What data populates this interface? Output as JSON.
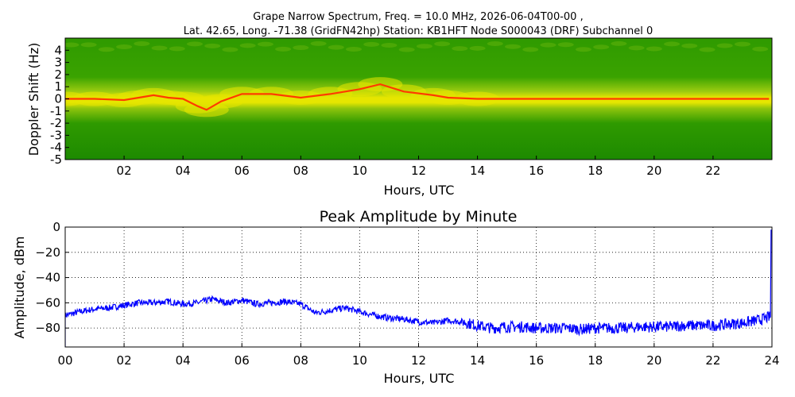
{
  "chart_data": [
    {
      "type": "heatmap",
      "title_line1": "Grape Narrow Spectrum, Freq. = 10.0 MHz, 2026-06-04T00-00 ,",
      "title_line2": "Lat.  42.65, Long. -71.38 (GridFN42hp) Station: KB1HFT Node S000043 (DRF) Subchannel 0",
      "xlabel": "Hours, UTC",
      "ylabel": "Doppler Shift (Hz)",
      "xlim": [
        0,
        24
      ],
      "ylim": [
        -5,
        5
      ],
      "x_ticks": [
        "02",
        "04",
        "06",
        "08",
        "10",
        "12",
        "14",
        "16",
        "18",
        "20",
        "22"
      ],
      "y_ticks": [
        "4",
        "3",
        "2",
        "1",
        "0",
        "-1",
        "-2",
        "-3",
        "-4",
        "-5"
      ],
      "colors": {
        "background": "#1a8a00",
        "mid": "#e6e600",
        "peak": "#ff3b00"
      },
      "doppler_trace": {
        "hours": [
          0,
          1,
          2,
          2.5,
          3,
          3.5,
          4,
          4.5,
          4.8,
          5.3,
          6,
          7,
          8,
          9,
          10,
          10.7,
          11.5,
          12.5,
          13,
          14,
          16,
          18,
          20,
          22,
          23.9
        ],
        "hz": [
          0,
          0,
          -0.1,
          0.1,
          0.3,
          0.1,
          0,
          -0.6,
          -0.9,
          -0.2,
          0.4,
          0.4,
          0.1,
          0.4,
          0.8,
          1.2,
          0.6,
          0.3,
          0.1,
          0,
          0,
          0,
          0,
          0,
          0
        ]
      }
    },
    {
      "type": "line",
      "title": "Peak Amplitude by Minute",
      "xlabel": "Hours, UTC",
      "ylabel": "Amplitude, dBm",
      "xlim": [
        0,
        24
      ],
      "ylim": [
        -95,
        0
      ],
      "x_ticks": [
        "00",
        "02",
        "04",
        "06",
        "08",
        "10",
        "12",
        "14",
        "16",
        "18",
        "20",
        "22",
        "24"
      ],
      "y_ticks": [
        "0",
        "−20",
        "−40",
        "−60",
        "−80"
      ],
      "grid": true,
      "line_color": "#0000ff",
      "series": [
        {
          "x": [
            0,
            0.5,
            1,
            1.5,
            2,
            2.5,
            3,
            3.5,
            4,
            4.5,
            5,
            5.5,
            6,
            6.5,
            7,
            7.5,
            8,
            8.5,
            9,
            9.5,
            10,
            10.5,
            11,
            11.5,
            12,
            12.5,
            13,
            13.5,
            14,
            14.5,
            15,
            15.5,
            16,
            16.5,
            17,
            17.5,
            18,
            18.5,
            19,
            19.5,
            20,
            20.5,
            21,
            21.5,
            22,
            22.5,
            23,
            23.5,
            23.95
          ],
          "y": [
            -70,
            -67,
            -65,
            -64,
            -62,
            -60,
            -60,
            -59,
            -61,
            -60,
            -57,
            -60,
            -58,
            -61,
            -60,
            -59,
            -61,
            -68,
            -66,
            -64,
            -67,
            -70,
            -72,
            -73,
            -75,
            -76,
            -74,
            -75,
            -78,
            -80,
            -79,
            -79,
            -80,
            -80,
            -80,
            -81,
            -80,
            -80,
            -80,
            -79,
            -79,
            -79,
            -78,
            -78,
            -78,
            -77,
            -76,
            -74,
            -71
          ]
        }
      ]
    }
  ]
}
